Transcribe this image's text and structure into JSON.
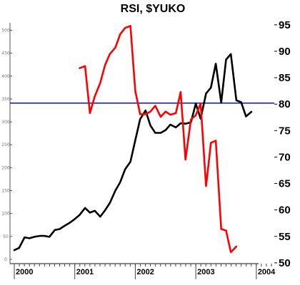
{
  "chart_data": {
    "type": "line",
    "title": "RSI, $YUKO",
    "x_axis": {
      "ticks": [
        "2000",
        "2001",
        "2002",
        "2003",
        "2004"
      ],
      "range": [
        2000.0,
        2004.25
      ]
    },
    "left_axis": {
      "range": [
        -25,
        535
      ],
      "ticks": [
        "0",
        "50",
        "100",
        "150",
        "200",
        "250",
        "300",
        "350",
        "400",
        "450",
        "500"
      ]
    },
    "right_axis": {
      "range": [
        48.5,
        97.0
      ],
      "ticks": [
        "50",
        "55",
        "60",
        "65",
        "70",
        "75",
        "80",
        "85",
        "90",
        "95"
      ]
    },
    "reference_line": {
      "axis": "right",
      "value": 80.2,
      "color": "#1a1aa8"
    },
    "series": [
      {
        "axis": "left",
        "color": "#000000",
        "points": [
          [
            2000.0,
            20
          ],
          [
            2000.08,
            25
          ],
          [
            2000.17,
            48
          ],
          [
            2000.25,
            46
          ],
          [
            2000.33,
            49
          ],
          [
            2000.42,
            51
          ],
          [
            2000.5,
            51
          ],
          [
            2000.58,
            49
          ],
          [
            2000.67,
            64
          ],
          [
            2000.75,
            66
          ],
          [
            2000.83,
            73
          ],
          [
            2000.92,
            80
          ],
          [
            2001.0,
            88
          ],
          [
            2001.08,
            97
          ],
          [
            2001.17,
            112
          ],
          [
            2001.25,
            102
          ],
          [
            2001.33,
            106
          ],
          [
            2001.42,
            93
          ],
          [
            2001.5,
            107
          ],
          [
            2001.58,
            123
          ],
          [
            2001.67,
            150
          ],
          [
            2001.75,
            168
          ],
          [
            2001.83,
            196
          ],
          [
            2001.92,
            213
          ],
          [
            2002.0,
            260
          ],
          [
            2002.08,
            306
          ],
          [
            2002.17,
            325
          ],
          [
            2002.25,
            292
          ],
          [
            2002.33,
            276
          ],
          [
            2002.42,
            276
          ],
          [
            2002.5,
            282
          ],
          [
            2002.58,
            294
          ],
          [
            2002.67,
            288
          ],
          [
            2002.75,
            297
          ],
          [
            2002.83,
            296
          ],
          [
            2002.92,
            299
          ],
          [
            2003.0,
            340
          ],
          [
            2003.08,
            307
          ],
          [
            2003.17,
            362
          ],
          [
            2003.25,
            375
          ],
          [
            2003.33,
            427
          ],
          [
            2003.42,
            342
          ],
          [
            2003.5,
            436
          ],
          [
            2003.58,
            448
          ],
          [
            2003.67,
            347
          ],
          [
            2003.75,
            343
          ],
          [
            2003.83,
            312
          ],
          [
            2003.92,
            322
          ]
        ]
      },
      {
        "axis": "right",
        "color": "#ff0000",
        "points": [
          [
            2001.08,
            86.8
          ],
          [
            2001.17,
            87.2
          ],
          [
            2001.25,
            78.3
          ],
          [
            2001.33,
            81.5
          ],
          [
            2001.42,
            84.0
          ],
          [
            2001.5,
            87.4
          ],
          [
            2001.58,
            89.5
          ],
          [
            2001.67,
            90.7
          ],
          [
            2001.75,
            93.2
          ],
          [
            2001.83,
            94.4
          ],
          [
            2001.92,
            94.8
          ],
          [
            2002.0,
            82.5
          ],
          [
            2002.08,
            78.1
          ],
          [
            2002.17,
            78.1
          ],
          [
            2002.25,
            78.6
          ],
          [
            2002.33,
            79.7
          ],
          [
            2002.42,
            77.6
          ],
          [
            2002.5,
            78.6
          ],
          [
            2002.58,
            78.0
          ],
          [
            2002.67,
            78.3
          ],
          [
            2002.75,
            82.3
          ],
          [
            2002.83,
            69.5
          ],
          [
            2002.92,
            77.1
          ],
          [
            2003.0,
            77.9
          ],
          [
            2003.08,
            80.1
          ],
          [
            2003.17,
            64.5
          ],
          [
            2003.25,
            72.7
          ],
          [
            2003.33,
            73.1
          ],
          [
            2003.42,
            56.4
          ],
          [
            2003.5,
            56.1
          ],
          [
            2003.58,
            52.0
          ],
          [
            2003.67,
            53.1
          ]
        ]
      }
    ]
  }
}
